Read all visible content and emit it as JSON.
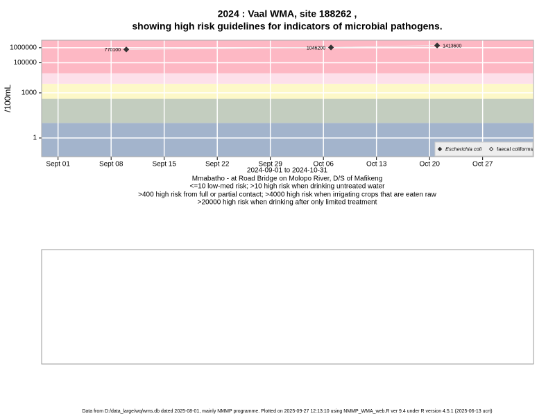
{
  "chart_data": {
    "type": "scatter",
    "title": "2024 : Vaal WMA, site 188262 ,",
    "subtitle": "showing high risk guidelines for indicators of microbial pathogens.",
    "ylabel": "/100mL",
    "xlabel": "2024-09-01 to 2024-10-31",
    "notes": [
      "Mmabatho - at Road Bridge on Molopo River, D/S of Mafikeng",
      "<=10 low-med risk; >10 high risk when drinking untreated water",
      ">400 high risk from full or partial contact; >4000 high risk when irrigating crops that are eaten raw",
      ">20000 high risk when drinking after only limited treatment"
    ],
    "footer": "Data from D:/data_large/wq/wms.db dated 2025-08-01, mainly NMMP programme. Plotted on 2025-09-27 12:13:10 using NMMP_WMA_web.R ver 9.4 under R version 4.5.1 (2025-06-13 ucrt)",
    "log_y": true,
    "ylim": [
      0.057,
      3162278
    ],
    "yticks": [
      1,
      1000,
      100000,
      1000000
    ],
    "xlim": [
      "2024-08-29T20:00",
      "2024-11-02T17:00"
    ],
    "xticks": [
      {
        "value": "2024-09-01",
        "label": "Sept 01"
      },
      {
        "value": "2024-09-08",
        "label": "Sept 08"
      },
      {
        "value": "2024-09-15",
        "label": "Sept 15"
      },
      {
        "value": "2024-09-22",
        "label": "Sept 22"
      },
      {
        "value": "2024-09-29",
        "label": "Sept 29"
      },
      {
        "value": "2024-10-06",
        "label": "Oct 06"
      },
      {
        "value": "2024-10-13",
        "label": "Oct 13"
      },
      {
        "value": "2024-10-20",
        "label": "Oct 20"
      },
      {
        "value": "2024-10-27",
        "label": "Oct 27"
      }
    ],
    "bands": [
      {
        "from": 0.057,
        "to": 10,
        "color": "#a3b4cc"
      },
      {
        "from": 10,
        "to": 400,
        "color": "#c3cdbf"
      },
      {
        "from": 400,
        "to": 4000,
        "color": "#fdf8c8"
      },
      {
        "from": 4000,
        "to": 20000,
        "color": "#fde0ea"
      },
      {
        "from": 20000,
        "to": 3162278,
        "color": "#fdb8c4"
      }
    ],
    "legend_position": "bottom-right",
    "series": [
      {
        "name": "Escherichia coli",
        "color": "#333333",
        "marker": "filled",
        "x": [
          "2024-09-10",
          "2024-10-07",
          "2024-10-21"
        ],
        "values": [
          770100,
          1046200,
          1413600
        ]
      },
      {
        "name": "faecal coliforms",
        "color": "#333333",
        "marker": "open",
        "x": [],
        "values": []
      }
    ]
  }
}
